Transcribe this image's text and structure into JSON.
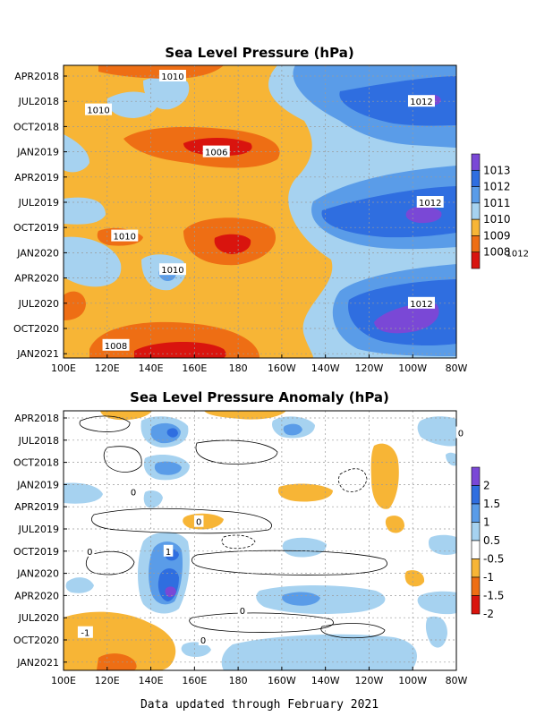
{
  "chart_data": [
    {
      "type": "heatmap",
      "title": "Sea Level Pressure (hPa)",
      "x_ticks": [
        "100E",
        "120E",
        "140E",
        "160E",
        "180",
        "160W",
        "140W",
        "120W",
        "100W",
        "80W"
      ],
      "y_ticks": [
        "APR2018",
        "JUL2018",
        "OCT2018",
        "JAN2019",
        "APR2019",
        "JUL2019",
        "OCT2019",
        "JAN2020",
        "APR2020",
        "JUL2020",
        "OCT2020",
        "JAN2021"
      ],
      "legend": {
        "levels": [
          "1013",
          "1012",
          "1011",
          "1010",
          "1009",
          "1008"
        ],
        "colors": [
          "#7a48d6",
          "#2f6ee0",
          "#5a9ce8",
          "#a6d2f0",
          "#f7b536",
          "#ee6e14",
          "#d9140e"
        ]
      },
      "contour_labels": [
        {
          "text": "1010",
          "lon": 150,
          "month": "2018-04"
        },
        {
          "text": "1010",
          "lon": 116,
          "month": "2018-08"
        },
        {
          "text": "1012",
          "lon": 264,
          "month": "2018-07"
        },
        {
          "text": "1006",
          "lon": 170,
          "month": "2019-01"
        },
        {
          "text": "1012",
          "lon": 268,
          "month": "2019-07"
        },
        {
          "text": "1010",
          "lon": 128,
          "month": "2019-11"
        },
        {
          "text": "1012",
          "lon": 308,
          "month": "2020-01"
        },
        {
          "text": "1010",
          "lon": 150,
          "month": "2020-03"
        },
        {
          "text": "1012",
          "lon": 264,
          "month": "2020-07"
        },
        {
          "text": "1008",
          "lon": 124,
          "month": "2020-12"
        }
      ]
    },
    {
      "type": "heatmap",
      "title": "Sea Level Pressure Anomaly (hPa)",
      "x_ticks": [
        "100E",
        "120E",
        "140E",
        "160E",
        "180",
        "160W",
        "140W",
        "120W",
        "100W",
        "80W"
      ],
      "y_ticks": [
        "APR2018",
        "JUL2018",
        "OCT2018",
        "JAN2019",
        "APR2019",
        "JUL2019",
        "OCT2019",
        "JAN2020",
        "APR2020",
        "JUL2020",
        "OCT2020",
        "JAN2021"
      ],
      "legend": {
        "levels": [
          "2",
          "1.5",
          "1",
          "0.5",
          "-0.5",
          "-1",
          "-1.5",
          "-2"
        ],
        "colors": [
          "#7a48d6",
          "#2f6ee0",
          "#5a9ce8",
          "#a6d2f0",
          "#ffffff",
          "#f7b536",
          "#ee6e14",
          "#d9140e"
        ]
      },
      "contour_labels": [
        {
          "text": "0",
          "lon": 282,
          "month": "2018-06"
        },
        {
          "text": "0",
          "lon": 132,
          "month": "2019-02"
        },
        {
          "text": "0",
          "lon": 162,
          "month": "2019-06"
        },
        {
          "text": "0",
          "lon": 112,
          "month": "2019-10"
        },
        {
          "text": "1",
          "lon": 148,
          "month": "2019-10"
        },
        {
          "text": "0",
          "lon": 182,
          "month": "2020-06"
        },
        {
          "text": "-1",
          "lon": 110,
          "month": "2020-09"
        },
        {
          "text": "0",
          "lon": 164,
          "month": "2020-10"
        }
      ]
    }
  ],
  "footer": "Data updated through February 2021"
}
